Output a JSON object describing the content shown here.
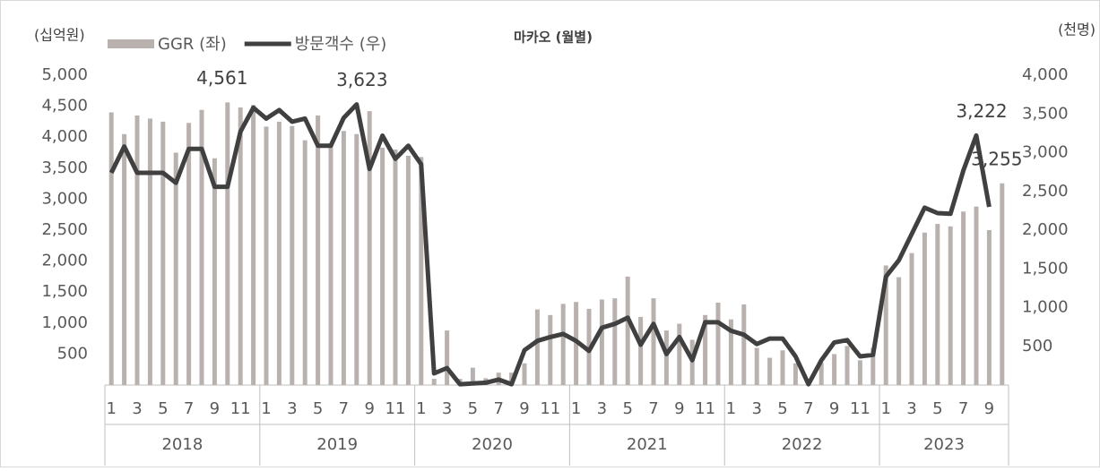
{
  "chart_data": {
    "type": "bar_line",
    "title": "마카오 (월별)",
    "y_label": "(십억원)",
    "y2_label": "(천명)",
    "categories": [
      "1",
      null,
      "3",
      null,
      "5",
      null,
      "7",
      null,
      "9",
      null,
      "11",
      null,
      "1",
      null,
      "3",
      null,
      "5",
      null,
      "7",
      null,
      "9",
      null,
      "11",
      null,
      "1",
      null,
      "3",
      null,
      "5",
      null,
      "7",
      null,
      "9",
      null,
      "11",
      null,
      "1",
      null,
      "3",
      null,
      "5",
      null,
      "7",
      null,
      "9",
      null,
      "11",
      null,
      "1",
      null,
      "3",
      null,
      "5",
      null,
      "7",
      null,
      "9",
      null,
      "11",
      null,
      "1",
      null,
      "3",
      null,
      "5",
      null,
      "7",
      null,
      "9",
      null
    ],
    "groups": [
      "2018",
      "2019",
      "2020",
      "2021",
      "2022",
      "2023"
    ],
    "series": [
      {
        "name": "GGR (좌)",
        "type": "bar",
        "color": "#b8b1ae",
        "values": [
          4400,
          4050,
          4350,
          4300,
          4250,
          3750,
          4230,
          4440,
          3660,
          4561,
          4480,
          4520,
          4170,
          4250,
          4180,
          3950,
          4350,
          3900,
          4100,
          4050,
          4420,
          3830,
          3800,
          3700,
          3680,
          100,
          880,
          100,
          280,
          110,
          200,
          200,
          350,
          1220,
          1130,
          1310,
          1340,
          1230,
          1380,
          1400,
          1750,
          1100,
          1400,
          880,
          990,
          730,
          1130,
          1330,
          1060,
          1300,
          600,
          440,
          560,
          350,
          50,
          360,
          500,
          630,
          400,
          600,
          1930,
          1740,
          2130,
          2460,
          2600,
          2560,
          2800,
          2880,
          2500,
          3255
        ],
        "value_labels": [
          null,
          null,
          null,
          null,
          null,
          null,
          null,
          null,
          null,
          "4,561",
          null,
          null,
          null,
          null,
          null,
          null,
          null,
          null,
          null,
          null,
          null,
          null,
          null,
          null,
          null,
          null,
          null,
          null,
          null,
          null,
          null,
          null,
          null,
          null,
          null,
          null,
          null,
          null,
          null,
          null,
          null,
          null,
          null,
          null,
          null,
          null,
          null,
          null,
          null,
          null,
          null,
          null,
          null,
          null,
          null,
          null,
          null,
          null,
          null,
          null,
          null,
          null,
          null,
          null,
          null,
          null,
          null,
          null,
          null,
          "3,255"
        ]
      },
      {
        "name": "방문객수 (우)",
        "type": "line",
        "axis": "y2",
        "color": "#404040",
        "values": [
          2740,
          3080,
          2740,
          2740,
          2740,
          2610,
          3050,
          3050,
          2560,
          2560,
          3270,
          3580,
          3440,
          3550,
          3400,
          3440,
          3090,
          3090,
          3450,
          3623,
          2790,
          3220,
          2920,
          3090,
          2850,
          150,
          220,
          10,
          20,
          30,
          70,
          10,
          450,
          570,
          620,
          660,
          570,
          440,
          740,
          790,
          870,
          520,
          790,
          400,
          620,
          320,
          810,
          810,
          700,
          650,
          530,
          600,
          600,
          370,
          10,
          320,
          550,
          580,
          370,
          390,
          1400,
          1610,
          1950,
          2290,
          2220,
          2210,
          2770,
          3222,
          2300,
          null
        ],
        "value_labels": [
          null,
          null,
          null,
          null,
          null,
          null,
          null,
          null,
          null,
          null,
          null,
          null,
          null,
          null,
          null,
          null,
          null,
          null,
          null,
          "3,623",
          null,
          null,
          null,
          null,
          null,
          null,
          null,
          null,
          null,
          null,
          null,
          null,
          null,
          null,
          null,
          null,
          null,
          null,
          null,
          null,
          null,
          null,
          null,
          null,
          null,
          null,
          null,
          null,
          null,
          null,
          null,
          null,
          null,
          null,
          null,
          null,
          null,
          null,
          null,
          null,
          null,
          null,
          null,
          null,
          null,
          null,
          null,
          "3,222",
          null,
          null
        ]
      }
    ],
    "ylim": [
      0,
      5000
    ],
    "yticks": [
      500,
      {
        "value": 1000,
        "label": "1,000"
      },
      {
        "value": 1500,
        "label": "1,500"
      },
      {
        "value": 2000,
        "label": "2,000"
      },
      {
        "value": 2500,
        "label": "2,500"
      },
      {
        "value": 3000,
        "label": "3,000"
      },
      {
        "value": 3500,
        "label": "3,500"
      },
      {
        "value": 4000,
        "label": "4,000"
      },
      {
        "value": 4500,
        "label": "4,500"
      },
      {
        "value": 5000,
        "label": "5,000"
      }
    ],
    "y2lim": [
      0,
      4000
    ],
    "y2ticks": [
      500,
      {
        "value": 1000,
        "label": "1,000"
      },
      {
        "value": 1500,
        "label": "1,500"
      },
      {
        "value": 2000,
        "label": "2,000"
      },
      {
        "value": 2500,
        "label": "2,500"
      },
      {
        "value": 3000,
        "label": "3,000"
      },
      {
        "value": 3500,
        "label": "3,500"
      },
      {
        "value": 4000,
        "label": "4,000"
      }
    ],
    "grid": false,
    "legend": "top-left"
  }
}
